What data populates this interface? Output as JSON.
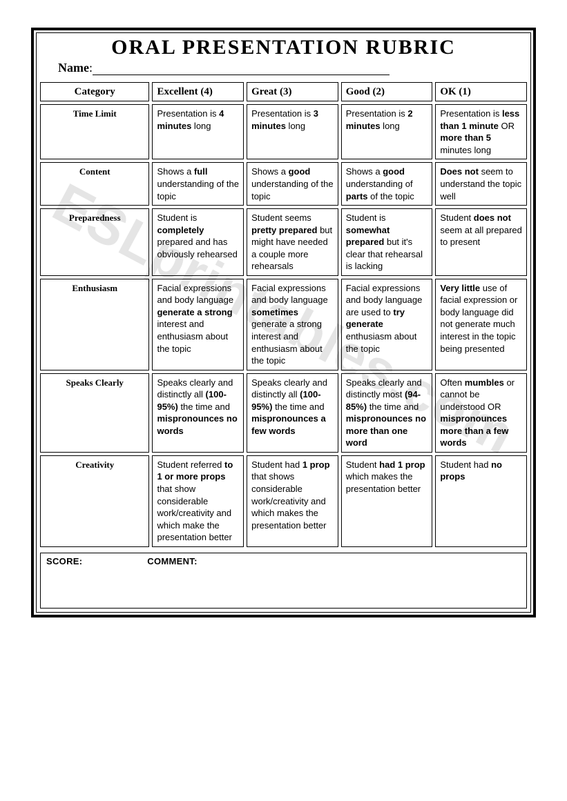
{
  "title": "ORAL PRESENTATION RUBRIC",
  "name_label": "Name",
  "watermark": "ESLprintables.com",
  "headers": {
    "category": "Category",
    "excellent": "Excellent (4)",
    "great": "Great (3)",
    "good": "Good (2)",
    "ok": "OK (1)"
  },
  "rows": [
    {
      "category": "Time Limit",
      "excellent": "Presentation is <b>4 minutes</b> long",
      "great": "Presentation is <b>3 minutes</b> long",
      "good": "Presentation is <b>2 minutes</b> long",
      "ok": "Presentation is <b>less than 1 minute</b> OR <b>more than 5</b> minutes long"
    },
    {
      "category": "Content",
      "excellent": "Shows a <b>full</b> understanding of the topic",
      "great": "Shows a <b>good</b> understanding of the topic",
      "good": "Shows a <b>good</b> understanding of <b>parts</b> of the topic",
      "ok": "<b>Does not</b> seem to understand the topic well"
    },
    {
      "category": "Preparedness",
      "excellent": "Student is <b>completely</b> prepared and has obviously rehearsed",
      "great": "Student seems <b>pretty prepared</b> but might have needed a couple more rehearsals",
      "good": "Student is <b>somewhat prepared</b> but it's clear that rehearsal is lacking",
      "ok": "Student <b>does not</b> seem at all prepared to present"
    },
    {
      "category": "Enthusiasm",
      "excellent": "Facial expressions and body language <b>generate a strong</b> interest and enthusiasm about the topic",
      "great": "Facial expressions and body language <b>sometimes</b> generate a strong interest and enthusiasm about the topic",
      "good": "Facial expressions and body language are used to <b>try generate</b> enthusiasm about the topic",
      "ok": "<b>Very little</b> use of facial expression or body language did not generate much interest in the topic being presented"
    },
    {
      "category": "Speaks Clearly",
      "excellent": "Speaks clearly and distinctly all <b>(100-95%)</b> the time and <b>mispronounces no words</b>",
      "great": "Speaks clearly and distinctly all <b>(100-95%)</b> the time and <b>mispronounces a few words</b>",
      "good": "Speaks clearly and distinctly most <b>(94-85%)</b> the time and <b>mispronounces no more than one word</b>",
      "ok": "Often <b>mumbles</b> or cannot be understood OR <b>mispronounces more than a few words</b>"
    },
    {
      "category": "Creativity",
      "excellent": "Student referred <b>to 1 or more props</b> that show considerable work/creativity and which make the presentation better",
      "great": "Student had <b>1 prop</b> that shows considerable work/creativity and which makes the presentation better",
      "good": "Student <b>had 1 prop</b> which makes the presentation better",
      "ok": "Student had <b>no props</b>"
    }
  ],
  "footer": {
    "score": "SCORE:",
    "comment": "COMMENT:"
  }
}
